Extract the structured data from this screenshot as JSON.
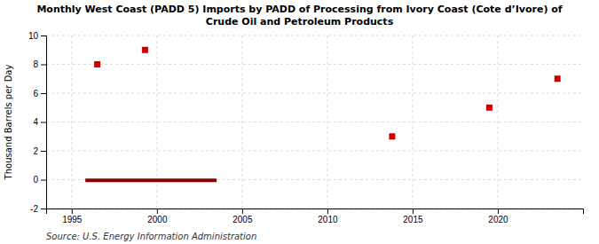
{
  "chart_data": {
    "type": "scatter",
    "title": "Monthly West Coast (PADD 5) Imports by PADD of Processing from Ivory Coast (Cote d’Ivore) of\nCrude Oil and Petroleum Products",
    "ylabel": "Thousand Barrels per Day",
    "source": "Source: U.S. Energy Information Administration",
    "xlim": [
      1993.5,
      2025
    ],
    "ylim": [
      -2,
      10
    ],
    "xticks": [
      1995,
      2000,
      2005,
      2010,
      2015,
      2020
    ],
    "yticks": [
      -2,
      0,
      2,
      4,
      6,
      8,
      10
    ],
    "grid": true,
    "series": [
      {
        "type": "scatter",
        "marker": "square",
        "color": "#cc0000",
        "x": [
          1996.5,
          1999.3,
          2013.8,
          2019.5,
          2023.5
        ],
        "values": [
          8.0,
          9.0,
          3.0,
          5.0,
          7.0
        ]
      },
      {
        "type": "line",
        "color": "#8b0000",
        "x": [
          1995.8,
          2003.5
        ],
        "values": [
          -0.05,
          -0.05
        ]
      }
    ]
  }
}
